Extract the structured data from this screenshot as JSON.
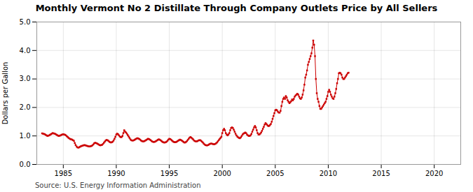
{
  "chart_data": {
    "type": "line",
    "title": "Monthly Vermont No 2 Distillate Through Company Outlets Price by All Sellers",
    "y_label": "Dollars per Gallon",
    "source": "Source: U.S. Energy Information Administration",
    "xlim": [
      1982.5,
      2022.5
    ],
    "ylim": [
      0.0,
      5.0
    ],
    "xticks": [
      1985,
      1990,
      1995,
      2000,
      2005,
      2010,
      2015,
      2020
    ],
    "yticks": [
      {
        "value": 0.0,
        "label": "0.0"
      },
      {
        "value": 1.0,
        "label": "1.0"
      },
      {
        "value": 2.0,
        "label": "2.0"
      },
      {
        "value": 3.0,
        "label": "3.0"
      },
      {
        "value": 4.0,
        "label": "4.0"
      },
      {
        "value": 5.0,
        "label": "5.0"
      }
    ],
    "grid": true,
    "color": "#cc0000",
    "marker": "square",
    "line_style": "solid",
    "x": [
      1983.0,
      1983.083,
      1983.167,
      1983.25,
      1983.333,
      1983.417,
      1983.5,
      1983.583,
      1983.667,
      1983.75,
      1983.833,
      1983.917,
      1984.0,
      1984.083,
      1984.167,
      1984.25,
      1984.333,
      1984.417,
      1984.5,
      1984.583,
      1984.667,
      1984.75,
      1984.833,
      1984.917,
      1985.0,
      1985.083,
      1985.167,
      1985.25,
      1985.333,
      1985.417,
      1985.5,
      1985.583,
      1985.667,
      1985.75,
      1985.833,
      1985.917,
      1986.0,
      1986.083,
      1986.167,
      1986.25,
      1986.333,
      1986.417,
      1986.5,
      1986.583,
      1986.667,
      1986.75,
      1986.833,
      1986.917,
      1987.0,
      1987.083,
      1987.167,
      1987.25,
      1987.333,
      1987.417,
      1987.5,
      1987.583,
      1987.667,
      1987.75,
      1987.833,
      1987.917,
      1988.0,
      1988.083,
      1988.167,
      1988.25,
      1988.333,
      1988.417,
      1988.5,
      1988.583,
      1988.667,
      1988.75,
      1988.833,
      1988.917,
      1989.0,
      1989.083,
      1989.167,
      1989.25,
      1989.333,
      1989.417,
      1989.5,
      1989.583,
      1989.667,
      1989.75,
      1989.833,
      1989.917,
      1990.0,
      1990.083,
      1990.167,
      1990.25,
      1990.333,
      1990.417,
      1990.5,
      1990.583,
      1990.667,
      1990.75,
      1990.833,
      1990.917,
      1991.0,
      1991.083,
      1991.167,
      1991.25,
      1991.333,
      1991.417,
      1991.5,
      1991.583,
      1991.667,
      1991.75,
      1991.833,
      1991.917,
      1992.0,
      1992.083,
      1992.167,
      1992.25,
      1992.333,
      1992.417,
      1992.5,
      1992.583,
      1992.667,
      1992.75,
      1992.833,
      1992.917,
      1993.0,
      1993.083,
      1993.167,
      1993.25,
      1993.333,
      1993.417,
      1993.5,
      1993.583,
      1993.667,
      1993.75,
      1993.833,
      1993.917,
      1994.0,
      1994.083,
      1994.167,
      1994.25,
      1994.333,
      1994.417,
      1994.5,
      1994.583,
      1994.667,
      1994.75,
      1994.833,
      1994.917,
      1995.0,
      1995.083,
      1995.167,
      1995.25,
      1995.333,
      1995.417,
      1995.5,
      1995.583,
      1995.667,
      1995.75,
      1995.833,
      1995.917,
      1996.0,
      1996.083,
      1996.167,
      1996.25,
      1996.333,
      1996.417,
      1996.5,
      1996.583,
      1996.667,
      1996.75,
      1996.833,
      1996.917,
      1997.0,
      1997.083,
      1997.167,
      1997.25,
      1997.333,
      1997.417,
      1997.5,
      1997.583,
      1997.667,
      1997.75,
      1997.833,
      1997.917,
      1998.0,
      1998.083,
      1998.167,
      1998.25,
      1998.333,
      1998.417,
      1998.5,
      1998.583,
      1998.667,
      1998.75,
      1998.833,
      1998.917,
      1999.0,
      1999.083,
      1999.167,
      1999.25,
      1999.333,
      1999.417,
      1999.5,
      1999.583,
      1999.667,
      1999.75,
      1999.833,
      1999.917,
      2000.0,
      2000.083,
      2000.167,
      2000.25,
      2000.333,
      2000.417,
      2000.5,
      2000.583,
      2000.667,
      2000.75,
      2000.833,
      2000.917,
      2001.0,
      2001.083,
      2001.167,
      2001.25,
      2001.333,
      2001.417,
      2001.5,
      2001.583,
      2001.667,
      2001.75,
      2001.833,
      2001.917,
      2002.0,
      2002.083,
      2002.167,
      2002.25,
      2002.333,
      2002.417,
      2002.5,
      2002.583,
      2002.667,
      2002.75,
      2002.833,
      2002.917,
      2003.0,
      2003.083,
      2003.167,
      2003.25,
      2003.333,
      2003.417,
      2003.5,
      2003.583,
      2003.667,
      2003.75,
      2003.833,
      2003.917,
      2004.0,
      2004.083,
      2004.167,
      2004.25,
      2004.333,
      2004.417,
      2004.5,
      2004.583,
      2004.667,
      2004.75,
      2004.833,
      2004.917,
      2005.0,
      2005.083,
      2005.167,
      2005.25,
      2005.333,
      2005.417,
      2005.5,
      2005.583,
      2005.667,
      2005.75,
      2005.833,
      2005.917,
      2006.0,
      2006.083,
      2006.167,
      2006.25,
      2006.333,
      2006.417,
      2006.5,
      2006.583,
      2006.667,
      2006.75,
      2006.833,
      2006.917,
      2007.0,
      2007.083,
      2007.167,
      2007.25,
      2007.333,
      2007.417,
      2007.5,
      2007.583,
      2007.667,
      2007.75,
      2007.833,
      2007.917,
      2008.0,
      2008.083,
      2008.167,
      2008.25,
      2008.333,
      2008.417,
      2008.5,
      2008.583,
      2008.667,
      2008.75,
      2008.833,
      2008.917,
      2009.0,
      2009.083,
      2009.167,
      2009.25,
      2009.333,
      2009.417,
      2009.5,
      2009.583,
      2009.667,
      2009.75,
      2009.833,
      2009.917,
      2010.0,
      2010.083,
      2010.167,
      2010.25,
      2010.333,
      2010.417,
      2010.5,
      2010.583,
      2010.667,
      2010.75,
      2010.833,
      2010.917,
      2011.0,
      2011.083,
      2011.167,
      2011.25,
      2011.333,
      2011.417,
      2011.5,
      2011.583,
      2011.667,
      2011.75,
      2011.833,
      2011.917
    ],
    "values": [
      1.09,
      1.08,
      1.07,
      1.06,
      1.04,
      1.02,
      1.0,
      1.01,
      1.02,
      1.04,
      1.06,
      1.08,
      1.1,
      1.09,
      1.08,
      1.07,
      1.05,
      1.03,
      1.01,
      1.0,
      1.01,
      1.02,
      1.04,
      1.05,
      1.06,
      1.05,
      1.04,
      1.02,
      0.99,
      0.96,
      0.93,
      0.91,
      0.89,
      0.88,
      0.87,
      0.85,
      0.83,
      0.75,
      0.68,
      0.63,
      0.6,
      0.59,
      0.6,
      0.62,
      0.64,
      0.65,
      0.66,
      0.67,
      0.68,
      0.67,
      0.66,
      0.65,
      0.64,
      0.63,
      0.63,
      0.64,
      0.65,
      0.67,
      0.7,
      0.74,
      0.76,
      0.75,
      0.74,
      0.72,
      0.7,
      0.68,
      0.67,
      0.68,
      0.69,
      0.72,
      0.76,
      0.8,
      0.84,
      0.86,
      0.85,
      0.83,
      0.8,
      0.78,
      0.77,
      0.78,
      0.8,
      0.84,
      0.9,
      0.97,
      1.05,
      1.08,
      1.06,
      1.02,
      0.98,
      0.96,
      0.96,
      1.0,
      1.1,
      1.2,
      1.15,
      1.12,
      1.08,
      1.03,
      0.98,
      0.93,
      0.88,
      0.85,
      0.84,
      0.84,
      0.85,
      0.87,
      0.89,
      0.91,
      0.92,
      0.91,
      0.89,
      0.87,
      0.84,
      0.82,
      0.81,
      0.81,
      0.82,
      0.84,
      0.86,
      0.88,
      0.9,
      0.89,
      0.87,
      0.85,
      0.82,
      0.8,
      0.79,
      0.79,
      0.8,
      0.82,
      0.84,
      0.86,
      0.88,
      0.87,
      0.85,
      0.83,
      0.8,
      0.78,
      0.77,
      0.77,
      0.78,
      0.8,
      0.83,
      0.87,
      0.9,
      0.89,
      0.87,
      0.84,
      0.81,
      0.79,
      0.78,
      0.78,
      0.79,
      0.81,
      0.83,
      0.85,
      0.87,
      0.86,
      0.84,
      0.82,
      0.79,
      0.77,
      0.77,
      0.79,
      0.82,
      0.86,
      0.9,
      0.94,
      0.96,
      0.94,
      0.91,
      0.88,
      0.84,
      0.82,
      0.81,
      0.81,
      0.82,
      0.84,
      0.85,
      0.85,
      0.83,
      0.8,
      0.77,
      0.73,
      0.7,
      0.68,
      0.67,
      0.67,
      0.68,
      0.7,
      0.72,
      0.73,
      0.73,
      0.72,
      0.71,
      0.71,
      0.72,
      0.74,
      0.77,
      0.81,
      0.85,
      0.89,
      0.93,
      0.97,
      1.1,
      1.2,
      1.25,
      1.2,
      1.1,
      1.05,
      1.02,
      1.05,
      1.1,
      1.2,
      1.28,
      1.3,
      1.28,
      1.22,
      1.15,
      1.08,
      1.02,
      0.98,
      0.95,
      0.93,
      0.92,
      0.95,
      1.0,
      1.05,
      1.08,
      1.1,
      1.12,
      1.1,
      1.05,
      1.02,
      1.0,
      1.0,
      1.02,
      1.07,
      1.15,
      1.22,
      1.3,
      1.35,
      1.3,
      1.2,
      1.1,
      1.05,
      1.05,
      1.08,
      1.12,
      1.18,
      1.25,
      1.32,
      1.4,
      1.45,
      1.42,
      1.38,
      1.35,
      1.35,
      1.38,
      1.42,
      1.5,
      1.6,
      1.7,
      1.8,
      1.9,
      1.92,
      1.9,
      1.85,
      1.82,
      1.82,
      1.88,
      2.05,
      2.2,
      2.3,
      2.35,
      2.3,
      2.4,
      2.35,
      2.25,
      2.2,
      2.15,
      2.18,
      2.22,
      2.28,
      2.25,
      2.3,
      2.38,
      2.42,
      2.45,
      2.48,
      2.45,
      2.38,
      2.32,
      2.3,
      2.35,
      2.45,
      2.6,
      2.8,
      3.05,
      3.15,
      3.3,
      3.5,
      3.6,
      3.7,
      3.8,
      3.9,
      4.1,
      4.35,
      4.2,
      3.8,
      3.0,
      2.5,
      2.3,
      2.2,
      2.05,
      1.95,
      1.95,
      2.0,
      2.05,
      2.1,
      2.15,
      2.2,
      2.3,
      2.4,
      2.55,
      2.62,
      2.55,
      2.45,
      2.38,
      2.32,
      2.3,
      2.38,
      2.5,
      2.65,
      2.85,
      3.0,
      3.2,
      3.22,
      3.2,
      3.15,
      3.05,
      3.0,
      3.0,
      3.05,
      3.1,
      3.15,
      3.2,
      3.22
    ]
  }
}
